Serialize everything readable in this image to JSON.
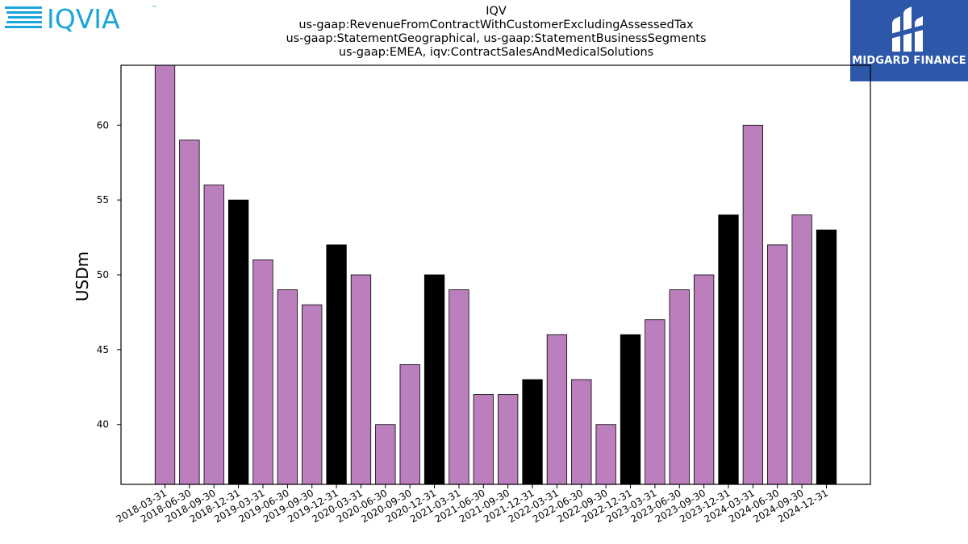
{
  "header": {
    "title_lines": [
      "IQV",
      "us-gaap:RevenueFromContractWithCustomerExcludingAssessedTax",
      "us-gaap:StatementGeographical, us-gaap:StatementBusinessSegments",
      "us-gaap:EMEA, iqv:ContractSalesAndMedicalSolutions"
    ]
  },
  "logos": {
    "left": {
      "text": "IQVIA",
      "tm": "™",
      "color": "#1aa6d8",
      "dark": "#0b5a8a"
    },
    "right": {
      "text": "MIDGARD FINANCE",
      "color": "#2d57a8"
    }
  },
  "chart_data": {
    "type": "bar",
    "title": "",
    "xlabel": "",
    "ylabel": "USDm",
    "ylim": [
      36,
      64
    ],
    "yticks": [
      40,
      45,
      50,
      55,
      60
    ],
    "grid": false,
    "colors": {
      "quarter": "#bb7fbd",
      "year_end": "#000000"
    },
    "categories": [
      "2018-03-31",
      "2018-06-30",
      "2018-09-30",
      "2018-12-31",
      "2019-03-31",
      "2019-06-30",
      "2019-09-30",
      "2019-12-31",
      "2020-03-31",
      "2020-06-30",
      "2020-09-30",
      "2020-12-31",
      "2021-03-31",
      "2021-06-30",
      "2021-09-30",
      "2021-12-31",
      "2022-03-31",
      "2022-06-30",
      "2022-09-30",
      "2022-12-31",
      "2023-03-31",
      "2023-06-30",
      "2023-09-30",
      "2023-12-31",
      "2024-03-31",
      "2024-06-30",
      "2024-09-30",
      "2024-12-31"
    ],
    "values": [
      64,
      59,
      56,
      55,
      51,
      49,
      48,
      52,
      50,
      40,
      44,
      50,
      49,
      42,
      42,
      43,
      46,
      43,
      40,
      46,
      47,
      49,
      50,
      54,
      60,
      52,
      54,
      53
    ]
  }
}
